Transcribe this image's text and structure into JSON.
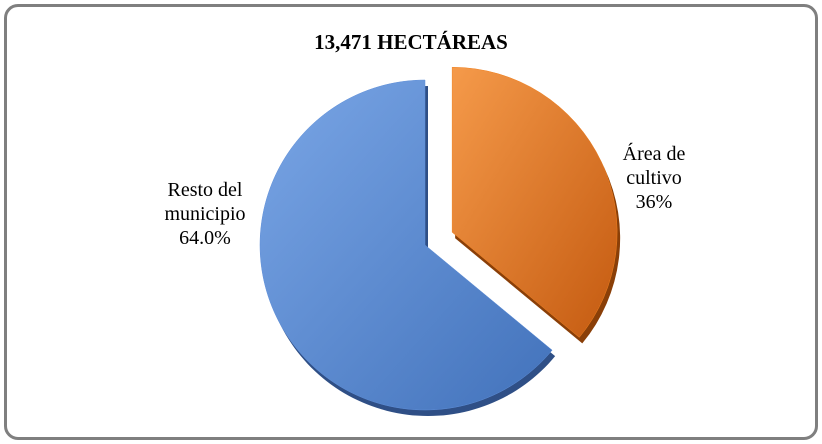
{
  "chart_data": {
    "type": "pie",
    "title": "13,471 HECTÁREAS",
    "categories": [
      "Área de cultivo",
      "Resto del municipio"
    ],
    "values": [
      36,
      64
    ],
    "value_labels": [
      "36%",
      "64.0%"
    ],
    "colors": [
      "#f0801e",
      "#5f8fd9"
    ]
  }
}
